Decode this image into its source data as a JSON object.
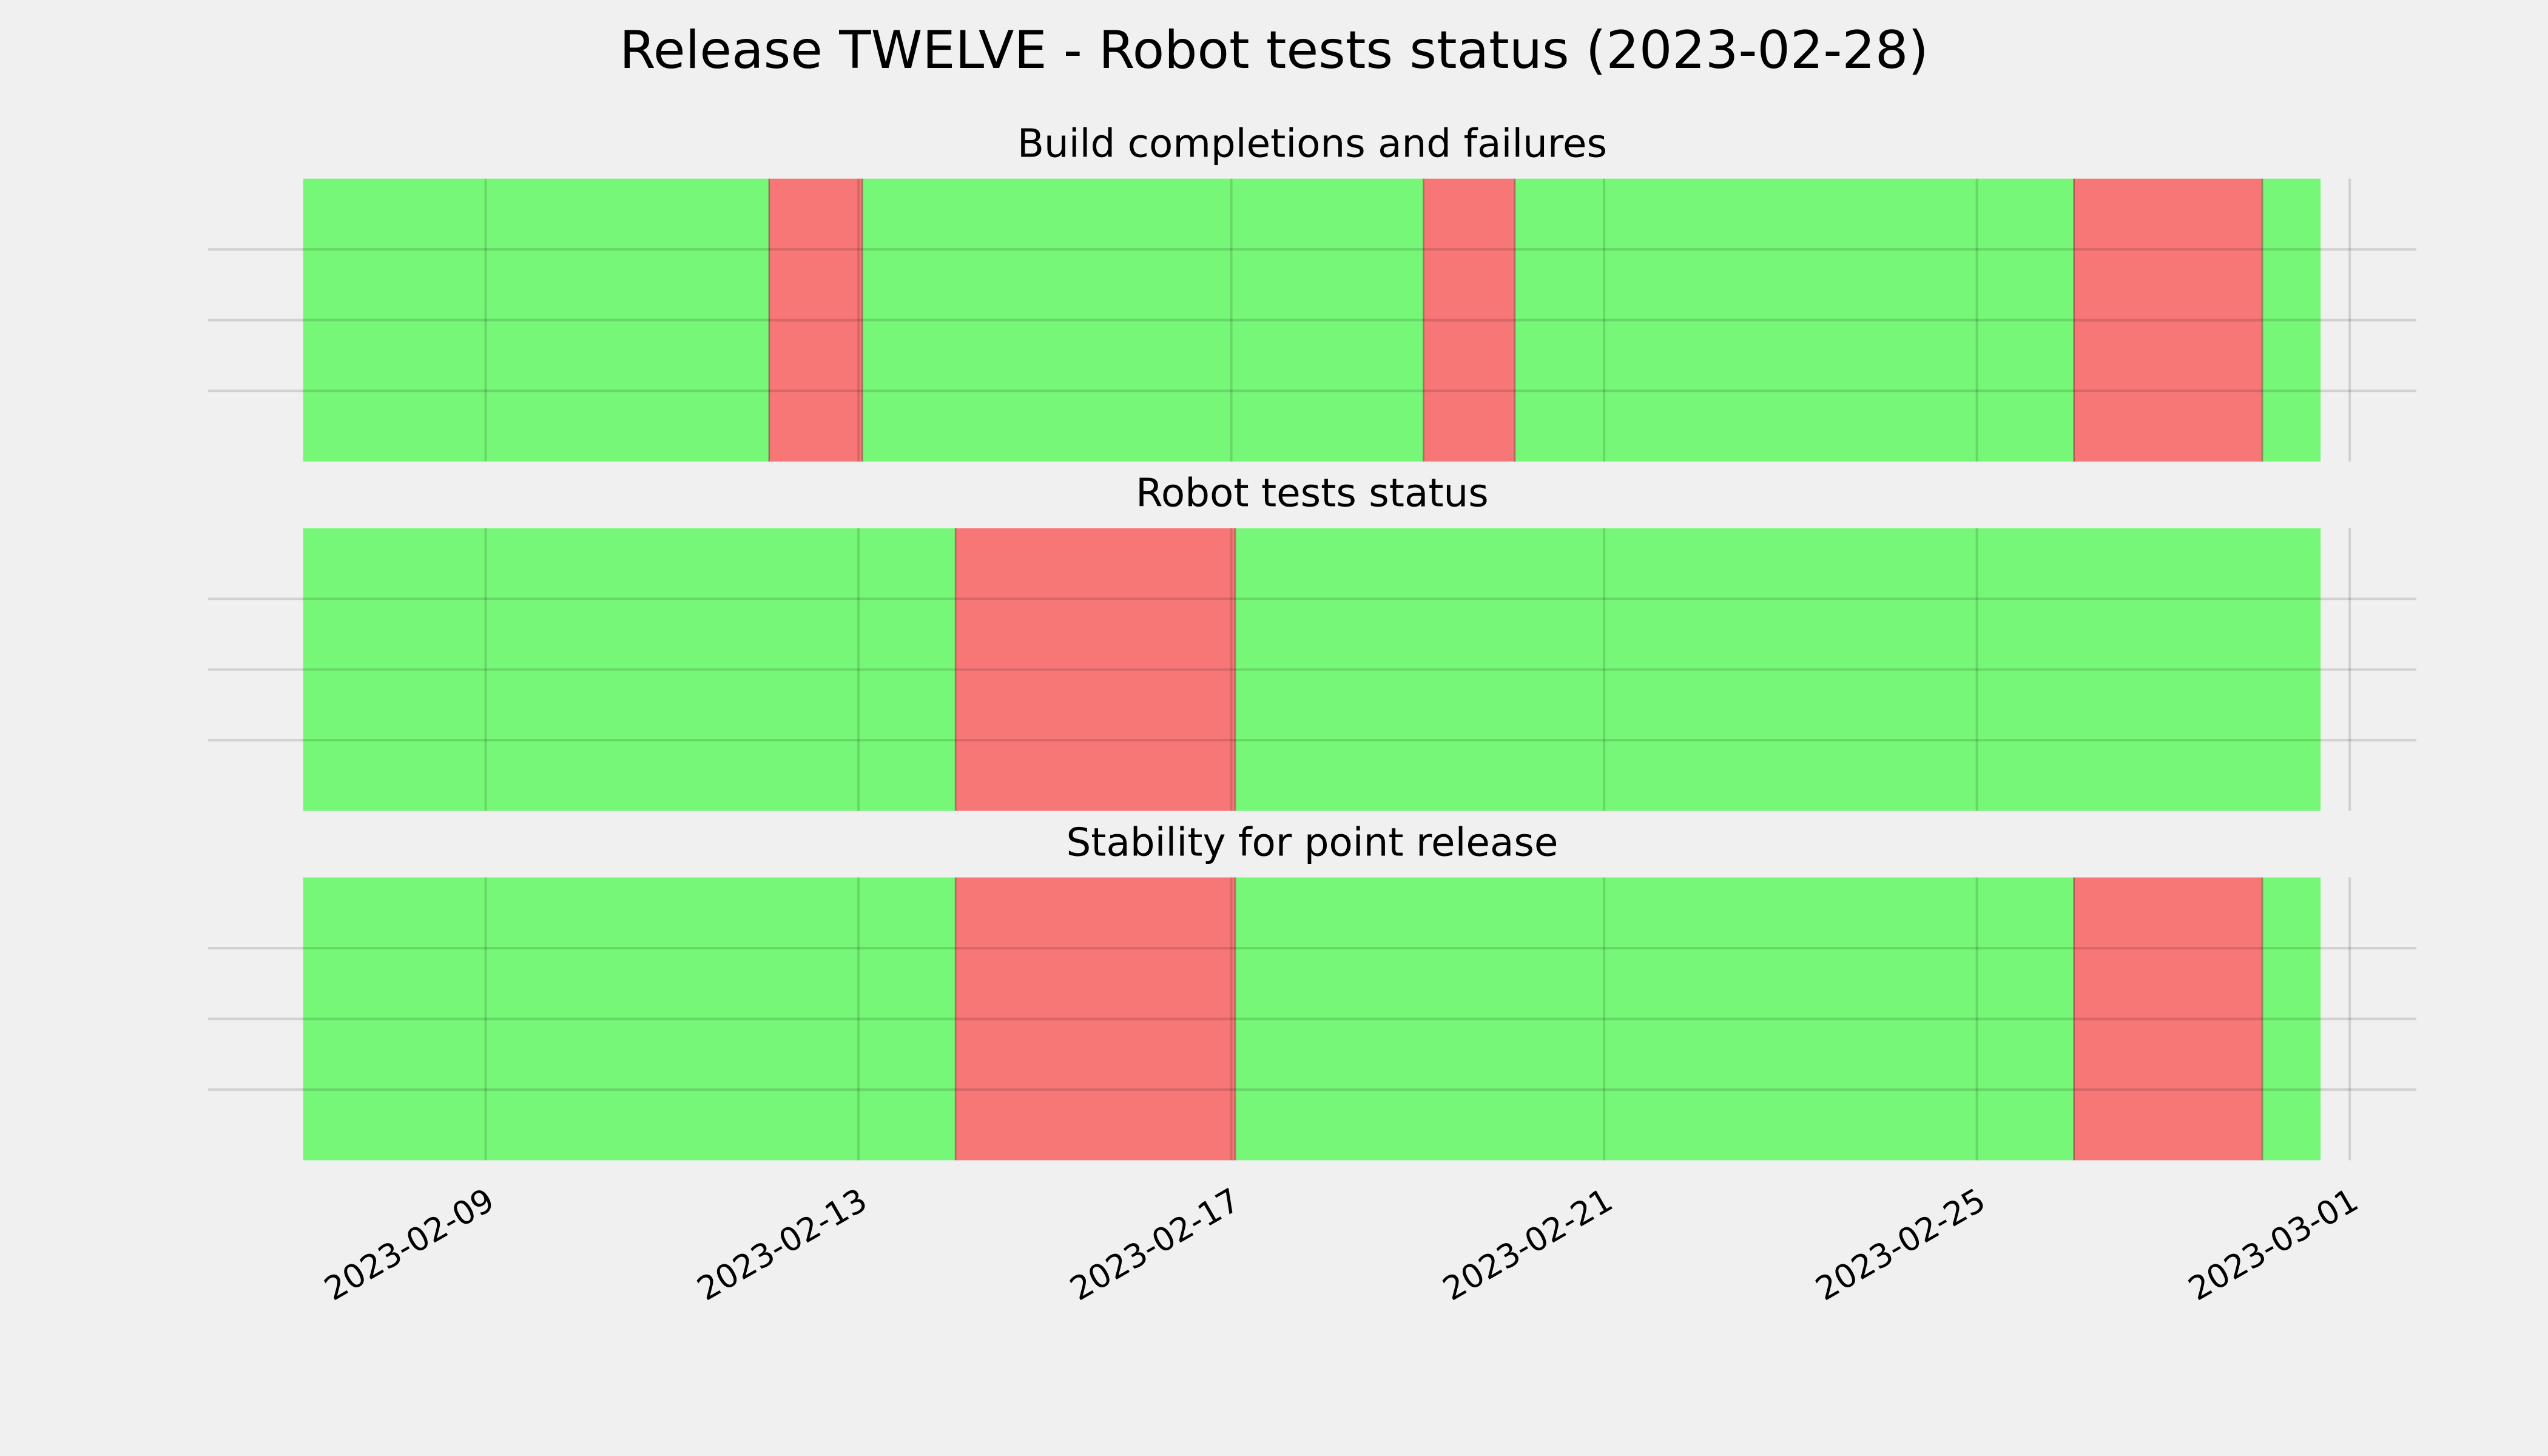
{
  "title": "Release TWELVE - Robot tests status (2023-02-28)",
  "chart_data": [
    {
      "type": "timeline",
      "title": "Build completions and failures",
      "x": [
        "2023-02-07T01:00",
        "2023-02-12T01:00",
        "2023-02-13T01:00",
        "2023-02-19T01:30",
        "2023-02-20T01:00",
        "2023-02-26T01:00",
        "2023-02-28T01:30",
        "2023-02-28T16:30"
      ],
      "colors": [
        "#77f777",
        "#f77777",
        "#77f777",
        "#f77777",
        "#77f777",
        "#f77777",
        "#77f777"
      ],
      "xlim": [
        "2023-02-06T00:30",
        "2023-03-01T17:10"
      ],
      "xticks": [
        "2023-02-09",
        "2023-02-13",
        "2023-02-17",
        "2023-02-21",
        "2023-02-25",
        "2023-03-01"
      ],
      "ylim": [
        0,
        1
      ],
      "yticks": [
        0.25,
        0.5,
        0.75
      ],
      "grid": true
    },
    {
      "type": "timeline",
      "title": "Robot tests status",
      "x": [
        "2023-02-07T01:00",
        "2023-02-14T01:00",
        "2023-02-17T01:00",
        "2023-02-28T16:30"
      ],
      "colors": [
        "#77f777",
        "#f77777",
        "#77f777"
      ],
      "xlim": [
        "2023-02-06T00:30",
        "2023-03-01T17:10"
      ],
      "xticks": [
        "2023-02-09",
        "2023-02-13",
        "2023-02-17",
        "2023-02-21",
        "2023-02-25",
        "2023-03-01"
      ],
      "ylim": [
        0,
        1
      ],
      "yticks": [
        0.25,
        0.5,
        0.75
      ],
      "grid": true
    },
    {
      "type": "timeline",
      "title": "Stability for point release",
      "x": [
        "2023-02-07T01:00",
        "2023-02-14T01:00",
        "2023-02-17T01:00",
        "2023-02-26T01:00",
        "2023-02-28T01:30",
        "2023-02-28T16:30"
      ],
      "colors": [
        "#77f777",
        "#f77777",
        "#77f777",
        "#f77777",
        "#77f777"
      ],
      "xlim": [
        "2023-02-06T00:30",
        "2023-03-01T17:10"
      ],
      "xticks": [
        "2023-02-09",
        "2023-02-13",
        "2023-02-17",
        "2023-02-21",
        "2023-02-25",
        "2023-03-01"
      ],
      "ylim": [
        0,
        1
      ],
      "yticks": [
        0.25,
        0.5,
        0.75
      ],
      "grid": true
    }
  ]
}
